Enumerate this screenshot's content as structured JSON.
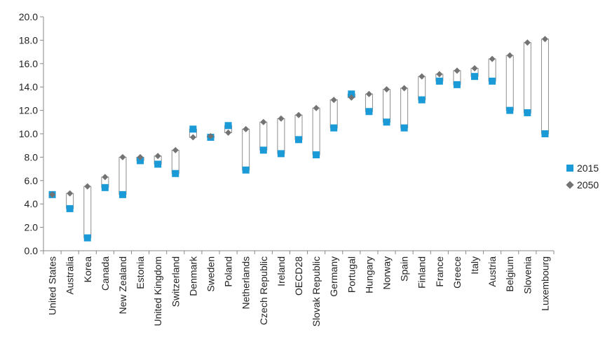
{
  "chart_data": {
    "type": "range-dot",
    "ylim": [
      0,
      20
    ],
    "yticks": [
      "0.0",
      "2.0",
      "4.0",
      "6.0",
      "8.0",
      "10.0",
      "12.0",
      "14.0",
      "16.0",
      "18.0",
      "20.0"
    ],
    "grid": false,
    "legend_position": "right",
    "categories": [
      "United States",
      "Australia",
      "Korea",
      "Canada",
      "New Zealand",
      "Estonia",
      "United Kingdom",
      "Switzerland",
      "Denmark",
      "Sweden",
      "Poland",
      "Netherlands",
      "Czech Republic",
      "Ireland",
      "OECD28",
      "Slovak Republic",
      "Germany",
      "Portugal",
      "Hungary",
      "Norway",
      "Spain",
      "Finland",
      "France",
      "Greece",
      "Italy",
      "Austria",
      "Belgium",
      "Slovenia",
      "Luxembourg"
    ],
    "series": [
      {
        "name": "2015",
        "marker": "square",
        "color": "#1a9ad6",
        "values": [
          4.8,
          3.6,
          1.1,
          5.4,
          4.8,
          7.7,
          7.4,
          6.6,
          10.4,
          9.7,
          10.7,
          6.9,
          8.6,
          8.3,
          9.5,
          8.2,
          10.5,
          13.4,
          11.9,
          11.0,
          10.5,
          12.9,
          14.5,
          14.2,
          14.9,
          14.5,
          12.0,
          11.8,
          10.0
        ]
      },
      {
        "name": "2050",
        "marker": "diamond",
        "color": "#737373",
        "values": [
          4.8,
          4.9,
          5.5,
          6.3,
          8.0,
          8.0,
          8.1,
          8.6,
          9.7,
          9.8,
          10.1,
          10.4,
          11.0,
          11.3,
          11.6,
          12.2,
          12.9,
          13.1,
          13.4,
          13.8,
          13.9,
          14.9,
          15.1,
          15.4,
          15.6,
          16.4,
          16.7,
          17.8,
          18.1
        ]
      }
    ]
  }
}
